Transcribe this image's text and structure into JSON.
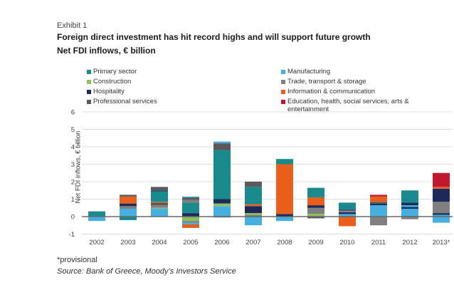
{
  "exhibit": "Exhibit 1",
  "title": "Foreign direct investment has hit record highs and will support future growth",
  "subtitle": "Net FDI inflows, € billion",
  "footnote": "*provisional",
  "source": "Source: Bank of Greece, Moody’s Investors Service",
  "chart_data": {
    "type": "bar",
    "stacked": true,
    "title": "Foreign direct investment has hit record highs and will support future growth",
    "subtitle": "Net FDI inflows, € billion",
    "ylabel": "Net FDI inflows, € billion",
    "xlabel": "",
    "ylim": [
      -1,
      6
    ],
    "yticks": [
      "-1",
      "0",
      "1",
      "2",
      "3",
      "4",
      "5",
      "6"
    ],
    "grid": true,
    "legend_position": "top",
    "categories": [
      "2002",
      "2003",
      "2004",
      "2005",
      "2006",
      "2007",
      "2008",
      "2009",
      "2010",
      "2011",
      "2012",
      "2013*"
    ],
    "series": [
      {
        "name": "Primary sector",
        "color": "#1b8a8e"
      },
      {
        "name": "Manufacturing",
        "color": "#47afe0"
      },
      {
        "name": "Construction",
        "color": "#8fc15a"
      },
      {
        "name": "Trade, transport & storage",
        "color": "#808080"
      },
      {
        "name": "Hospitality",
        "color": "#1d2a5a"
      },
      {
        "name": "Information & communication",
        "color": "#e8601c"
      },
      {
        "name": "Professional services",
        "color": "#5a5a5a"
      },
      {
        "name": "Education, health, social services, arts & entertainment",
        "color": "#c0182c"
      }
    ],
    "stacks": [
      {
        "positive": [
          [
            "Primary sector",
            0.3
          ]
        ],
        "negative": [
          [
            "Manufacturing",
            -0.25
          ]
        ]
      },
      {
        "positive": [
          [
            "Manufacturing",
            0.45
          ],
          [
            "Trade, transport & storage",
            0.15
          ],
          [
            "Hospitality",
            0.15
          ],
          [
            "Information & communication",
            0.4
          ],
          [
            "Professional services",
            0.1
          ]
        ],
        "negative": [
          [
            "Primary sector",
            -0.2
          ]
        ]
      },
      {
        "positive": [
          [
            "Manufacturing",
            0.45
          ],
          [
            "Construction",
            0.05
          ],
          [
            "Trade, transport & storage",
            0.15
          ],
          [
            "Professional services",
            0.15
          ],
          [
            "Information & communication",
            0.05
          ],
          [
            "Primary sector",
            0.6
          ],
          [
            "Hospitality",
            0.05
          ],
          [
            "Professional services",
            0.2
          ]
        ],
        "negative": []
      },
      {
        "positive": [
          [
            "Hospitality",
            0.2
          ],
          [
            "Primary sector",
            0.6
          ],
          [
            "Trade, transport & storage",
            0.15
          ],
          [
            "Professional services",
            0.15
          ],
          [
            "Manufacturing",
            0.05
          ]
        ],
        "negative": [
          [
            "Construction",
            -0.25
          ],
          [
            "Trade, transport & storage",
            -0.1
          ],
          [
            "Manufacturing",
            -0.1
          ],
          [
            "Information & communication",
            -0.2
          ]
        ]
      },
      {
        "positive": [
          [
            "Manufacturing",
            0.6
          ],
          [
            "Construction",
            0.15
          ],
          [
            "Hospitality",
            0.25
          ],
          [
            "Primary sector",
            2.8
          ],
          [
            "Professional services",
            0.4
          ],
          [
            "Manufacturing",
            0.1
          ]
        ],
        "negative": [
          [
            "Trade, transport & storage",
            -0.05
          ]
        ]
      },
      {
        "positive": [
          [
            "Trade, transport & storage",
            0.1
          ],
          [
            "Construction",
            0.1
          ],
          [
            "Hospitality",
            0.4
          ],
          [
            "Information & communication",
            0.1
          ],
          [
            "Primary sector",
            1.0
          ],
          [
            "Professional services",
            0.3
          ]
        ],
        "negative": [
          [
            "Manufacturing",
            -0.5
          ]
        ]
      },
      {
        "positive": [
          [
            "Hospitality",
            0.15
          ],
          [
            "Information & communication",
            2.85
          ],
          [
            "Primary sector",
            0.3
          ]
        ],
        "negative": [
          [
            "Manufacturing",
            -0.25
          ]
        ]
      },
      {
        "positive": [
          [
            "Construction",
            0.15
          ],
          [
            "Trade, transport & storage",
            0.35
          ],
          [
            "Hospitality",
            0.15
          ],
          [
            "Information & communication",
            0.45
          ],
          [
            "Primary sector",
            0.55
          ]
        ],
        "negative": [
          [
            "Professional services",
            -0.1
          ]
        ]
      },
      {
        "positive": [
          [
            "Manufacturing",
            0.15
          ],
          [
            "Hospitality",
            0.1
          ],
          [
            "Trade, transport & storage",
            0.1
          ],
          [
            "Hospitality",
            0.05
          ],
          [
            "Primary sector",
            0.4
          ]
        ],
        "negative": [
          [
            "Information & communication",
            -0.55
          ]
        ]
      },
      {
        "positive": [
          [
            "Manufacturing",
            0.65
          ],
          [
            "Hospitality",
            0.1
          ],
          [
            "Professional services",
            0.1
          ],
          [
            "Information & communication",
            0.3
          ],
          [
            "Education, health, social services, arts & entertainment",
            0.1
          ]
        ],
        "negative": [
          [
            "Trade, transport & storage",
            -0.5
          ]
        ]
      },
      {
        "positive": [
          [
            "Manufacturing",
            0.45
          ],
          [
            "Hospitality",
            0.1
          ],
          [
            "Manufacturing",
            0.1
          ],
          [
            "Hospitality",
            0.15
          ],
          [
            "Primary sector",
            0.7
          ]
        ],
        "negative": [
          [
            "Trade, transport & storage",
            -0.15
          ]
        ]
      },
      {
        "positive": [
          [
            "Manufacturing",
            0.1
          ],
          [
            "Hospitality",
            0.1
          ],
          [
            "Trade, transport & storage",
            0.65
          ],
          [
            "Hospitality",
            0.75
          ],
          [
            "Information & communication",
            0.1
          ],
          [
            "Education, health, social services, arts & entertainment",
            0.8
          ]
        ],
        "negative": [
          [
            "Manufacturing",
            -0.35
          ]
        ]
      }
    ]
  }
}
